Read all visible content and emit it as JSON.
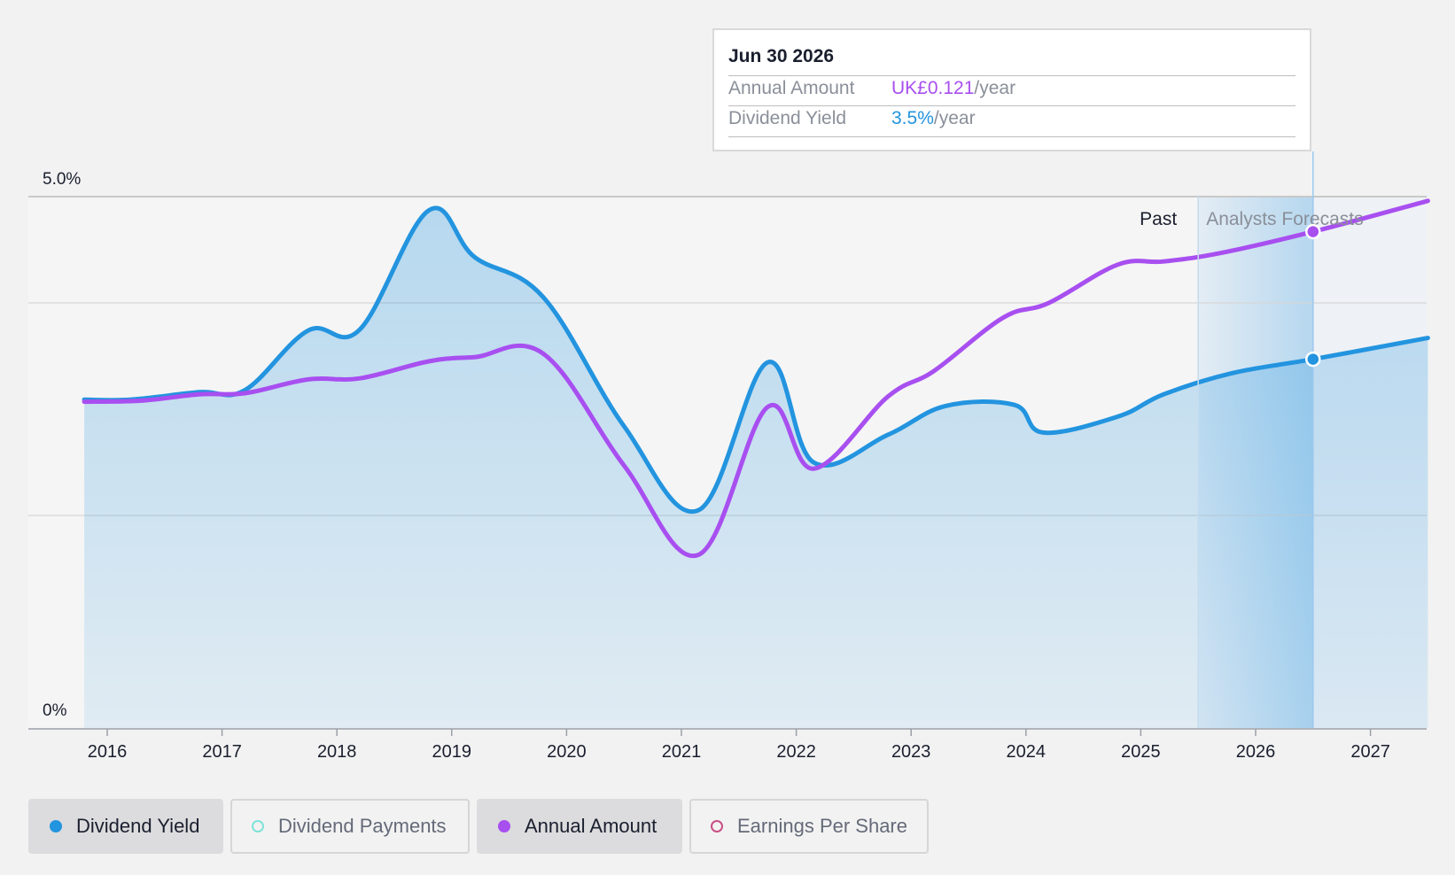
{
  "chart_data": {
    "type": "line",
    "x_axis": {
      "ticks": [
        "2016",
        "2017",
        "2018",
        "2019",
        "2020",
        "2021",
        "2022",
        "2023",
        "2024",
        "2025",
        "2026",
        "2027"
      ],
      "range": [
        2015.8,
        2027.5
      ]
    },
    "y_axis": {
      "tick_labels": [
        "5.0%",
        "0%"
      ],
      "range": [
        0,
        5.0
      ],
      "unit": "%"
    },
    "regions": {
      "past_label": "Past",
      "forecast_label": "Analysts Forecasts",
      "forecast_start": 2025.5,
      "highlight_end": 2026.5
    },
    "series": [
      {
        "name": "Dividend Yield",
        "color": "#2394df",
        "area": true,
        "points": [
          [
            2015.8,
            3.09
          ],
          [
            2016.2,
            3.09
          ],
          [
            2016.8,
            3.16
          ],
          [
            2017.2,
            3.18
          ],
          [
            2017.75,
            3.74
          ],
          [
            2018.2,
            3.75
          ],
          [
            2018.8,
            4.87
          ],
          [
            2019.2,
            4.43
          ],
          [
            2019.8,
            4.05
          ],
          [
            2020.5,
            2.84
          ],
          [
            2021.15,
            2.05
          ],
          [
            2021.75,
            3.44
          ],
          [
            2022.15,
            2.5
          ],
          [
            2022.8,
            2.76
          ],
          [
            2023.3,
            3.03
          ],
          [
            2023.9,
            3.04
          ],
          [
            2024.15,
            2.78
          ],
          [
            2024.8,
            2.93
          ],
          [
            2025.2,
            3.14
          ],
          [
            2025.8,
            3.34
          ],
          [
            2026.5,
            3.47
          ],
          [
            2027.5,
            3.67
          ]
        ]
      },
      {
        "name": "Annual Amount",
        "color": "#a84ff0",
        "area": false,
        "points": [
          [
            2015.8,
            3.07
          ],
          [
            2016.3,
            3.08
          ],
          [
            2016.8,
            3.14
          ],
          [
            2017.2,
            3.15
          ],
          [
            2017.75,
            3.28
          ],
          [
            2018.2,
            3.29
          ],
          [
            2018.8,
            3.45
          ],
          [
            2019.2,
            3.49
          ],
          [
            2019.8,
            3.52
          ],
          [
            2020.5,
            2.47
          ],
          [
            2021.15,
            1.63
          ],
          [
            2021.75,
            3.02
          ],
          [
            2022.15,
            2.44
          ],
          [
            2022.8,
            3.12
          ],
          [
            2023.2,
            3.36
          ],
          [
            2023.8,
            3.86
          ],
          [
            2024.2,
            4.0
          ],
          [
            2024.8,
            4.36
          ],
          [
            2025.2,
            4.39
          ],
          [
            2025.7,
            4.47
          ],
          [
            2026.5,
            4.67
          ],
          [
            2027.5,
            4.96
          ]
        ]
      }
    ],
    "markers": [
      {
        "series": "Annual Amount",
        "x": 2026.5,
        "y": 4.67
      },
      {
        "series": "Dividend Yield",
        "x": 2026.5,
        "y": 3.47
      }
    ]
  },
  "tooltip": {
    "date": "Jun 30 2026",
    "rows": [
      {
        "label": "Annual Amount",
        "value": "UK£0.121",
        "unit": "/year"
      },
      {
        "label": "Dividend Yield",
        "value": "3.5%",
        "unit": "/year"
      }
    ]
  },
  "legend": [
    {
      "label": "Dividend Yield",
      "color": "#2394df",
      "active": true,
      "filled": true
    },
    {
      "label": "Dividend Payments",
      "color": "#7fe3d9",
      "active": false,
      "filled": false
    },
    {
      "label": "Annual Amount",
      "color": "#a84ff0",
      "active": true,
      "filled": true
    },
    {
      "label": "Earnings Per Share",
      "color": "#c84f86",
      "active": false,
      "filled": false
    }
  ]
}
